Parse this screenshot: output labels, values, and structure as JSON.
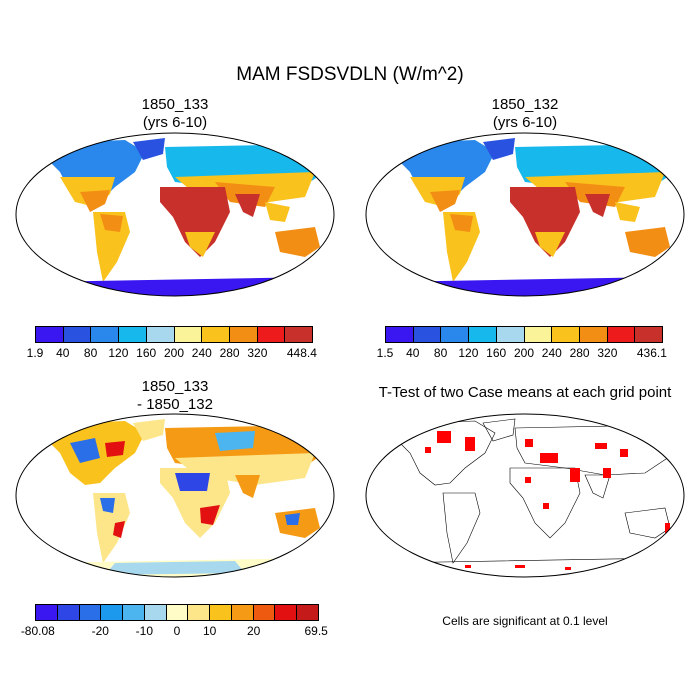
{
  "figure": {
    "title": "MAM FSDSVDLN (W/m^2)",
    "note": "Cells are significant at 0.1 level"
  },
  "panels": [
    {
      "title_line1": "1850_133",
      "title_line2": "(yrs 6-10)",
      "colorbar": {
        "colors": [
          "#3a16f0",
          "#2a52e0",
          "#2a88ec",
          "#17b8ec",
          "#a8d8ee",
          "#faf39a",
          "#f9c21c",
          "#f38e14",
          "#ed1b1b",
          "#c8302c"
        ],
        "labels": [
          "1.9",
          "40",
          "80",
          "120",
          "160",
          "200",
          "240",
          "280",
          "320",
          "448.4"
        ]
      }
    },
    {
      "title_line1": "1850_132",
      "title_line2": "(yrs 6-10)",
      "colorbar": {
        "colors": [
          "#3a16f0",
          "#2a52e0",
          "#2a88ec",
          "#17b8ec",
          "#a8d8ee",
          "#faf39a",
          "#f9c21c",
          "#f38e14",
          "#ed1b1b",
          "#c8302c"
        ],
        "labels": [
          "1.5",
          "40",
          "80",
          "120",
          "160",
          "200",
          "240",
          "280",
          "320",
          "436.1"
        ]
      }
    },
    {
      "title_line1": "1850_133",
      "title_line2": "- 1850_132",
      "colorbar": {
        "colors": [
          "#3a16f0",
          "#2e46e6",
          "#2a6ee8",
          "#1c98ec",
          "#4cb4ee",
          "#a8d8ee",
          "#fffcc8",
          "#fde68a",
          "#f9c21c",
          "#f59a14",
          "#ee5a10",
          "#e21010",
          "#c41a1a"
        ],
        "labels": [
          "-80.08",
          "-20",
          "-10",
          "0",
          "10",
          "20",
          "69.5"
        ]
      }
    },
    {
      "title_line1": "T-Test of two Case means at each grid point"
    }
  ]
}
